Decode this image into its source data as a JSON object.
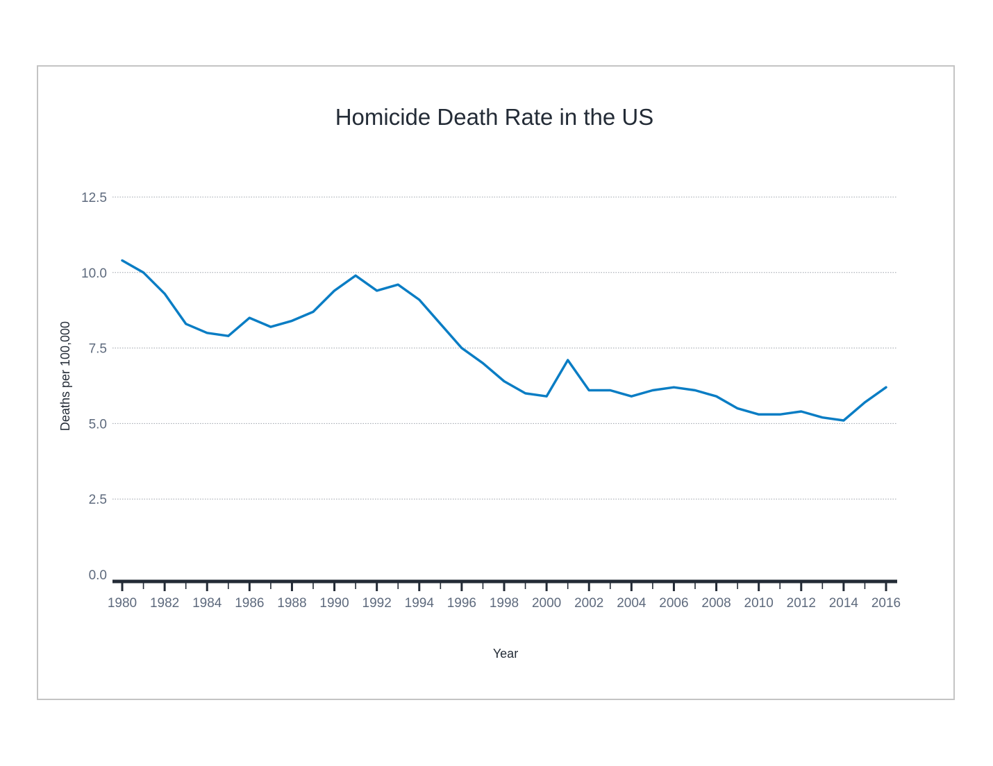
{
  "chart_data": {
    "type": "line",
    "title": "Homicide Death Rate in the US",
    "xlabel": "Year",
    "ylabel": "Deaths per 100,000",
    "xlim": [
      1980,
      2016
    ],
    "ylim": [
      0,
      12.5
    ],
    "x_tick_labels": [
      "1980",
      "1982",
      "1984",
      "1986",
      "1988",
      "1990",
      "1992",
      "1994",
      "1996",
      "1998",
      "2000",
      "2002",
      "2004",
      "2006",
      "2008",
      "2010",
      "2012",
      "2014",
      "2016"
    ],
    "y_tick_labels": [
      "0.0",
      "2.5",
      "5.0",
      "7.5",
      "10.0",
      "12.5"
    ],
    "grid": true,
    "legend": "none",
    "series": [
      {
        "color": "#0a7dc4",
        "x": [
          1980,
          1981,
          1982,
          1983,
          1984,
          1985,
          1986,
          1987,
          1988,
          1989,
          1990,
          1991,
          1992,
          1993,
          1994,
          1995,
          1996,
          1997,
          1998,
          1999,
          2000,
          2001,
          2002,
          2003,
          2004,
          2005,
          2006,
          2007,
          2008,
          2009,
          2010,
          2011,
          2012,
          2013,
          2014,
          2015,
          2016
        ],
        "values": [
          10.4,
          10.0,
          9.3,
          8.3,
          8.0,
          7.9,
          8.5,
          8.2,
          8.4,
          8.7,
          9.4,
          9.9,
          9.4,
          9.6,
          9.1,
          8.3,
          7.5,
          7.0,
          6.4,
          6.0,
          5.9,
          7.1,
          6.1,
          6.1,
          5.9,
          6.1,
          6.2,
          6.1,
          5.9,
          5.5,
          5.3,
          5.3,
          5.4,
          5.2,
          5.1,
          5.7,
          6.2
        ]
      }
    ],
    "colors": {
      "line": "#0a7dc4",
      "axis": "#232b36",
      "grid": "#9aa0a8",
      "tick_text": "#5e6a7d",
      "title": "#232b36",
      "frame": "#c4c4c4"
    }
  }
}
